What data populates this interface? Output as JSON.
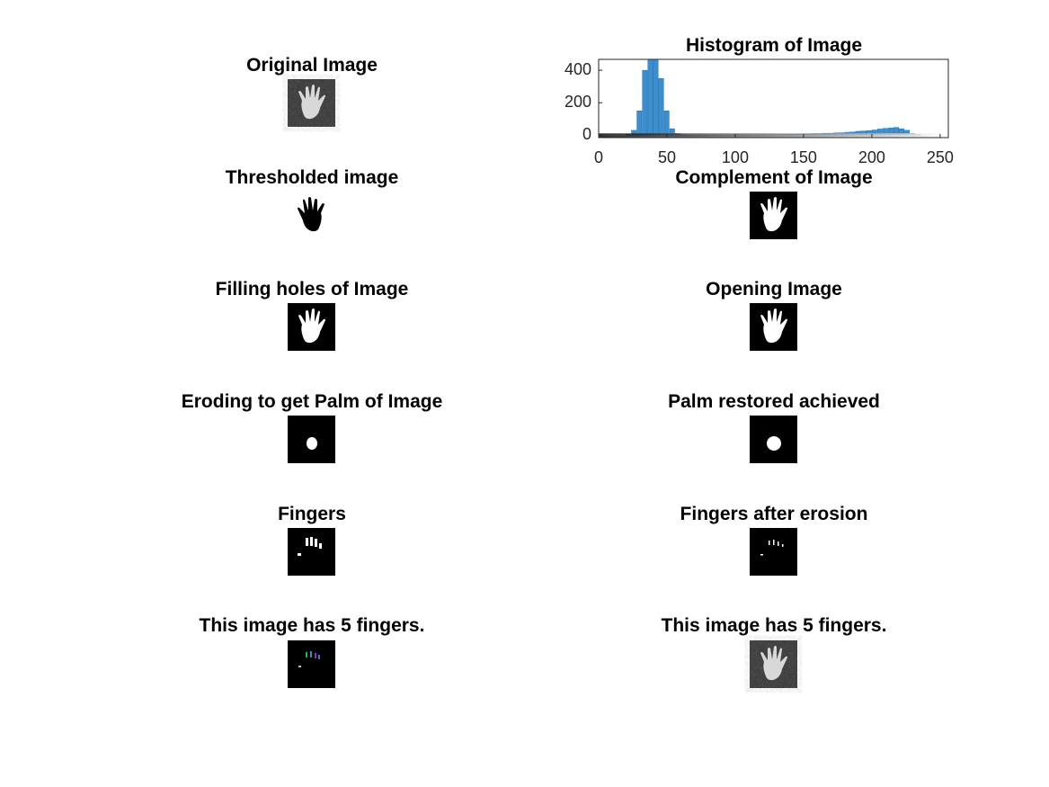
{
  "panels": [
    {
      "title": "Original Image"
    },
    {
      "title": "Thresholded image"
    },
    {
      "title": "Complement of Image"
    },
    {
      "title": "Filling holes of Image"
    },
    {
      "title": "Opening Image"
    },
    {
      "title": "Eroding to get Palm of Image"
    },
    {
      "title": "Palm restored achieved"
    },
    {
      "title": "Fingers"
    },
    {
      "title": "Fingers after erosion"
    },
    {
      "title": "This image has 5 fingers."
    },
    {
      "title": "This image has 5 fingers."
    }
  ],
  "chart_data": {
    "type": "histogram",
    "title": "Histogram of Image",
    "color": "#3a8fd0",
    "bins": [
      0,
      4,
      8,
      12,
      16,
      20,
      24,
      28,
      32,
      36,
      40,
      44,
      48,
      52,
      56,
      60,
      64,
      68,
      72,
      76,
      80,
      84,
      88,
      92,
      96,
      100,
      104,
      108,
      112,
      116,
      120,
      124,
      128,
      132,
      136,
      140,
      144,
      148,
      152,
      156,
      160,
      164,
      168,
      172,
      176,
      180,
      184,
      188,
      192,
      196,
      200,
      204,
      208,
      212,
      216,
      220,
      224,
      228,
      232,
      236,
      240,
      244,
      248,
      252,
      256
    ],
    "counts": [
      0,
      0,
      0,
      0,
      0,
      5,
      30,
      150,
      400,
      520,
      500,
      350,
      150,
      40,
      10,
      3,
      1,
      1,
      1,
      1,
      1,
      1,
      1,
      1,
      1,
      2,
      2,
      2,
      2,
      2,
      3,
      3,
      3,
      4,
      5,
      6,
      7,
      8,
      9,
      10,
      10,
      12,
      12,
      14,
      15,
      18,
      20,
      24,
      26,
      28,
      32,
      38,
      42,
      45,
      48,
      40,
      30,
      10,
      4,
      0,
      0,
      0,
      0,
      0
    ],
    "xlim": [
      0,
      256
    ],
    "ylim": [
      -15,
      467
    ],
    "xticks": [
      0,
      50,
      100,
      150,
      200,
      250
    ],
    "yticks": [
      0,
      200,
      400
    ]
  }
}
